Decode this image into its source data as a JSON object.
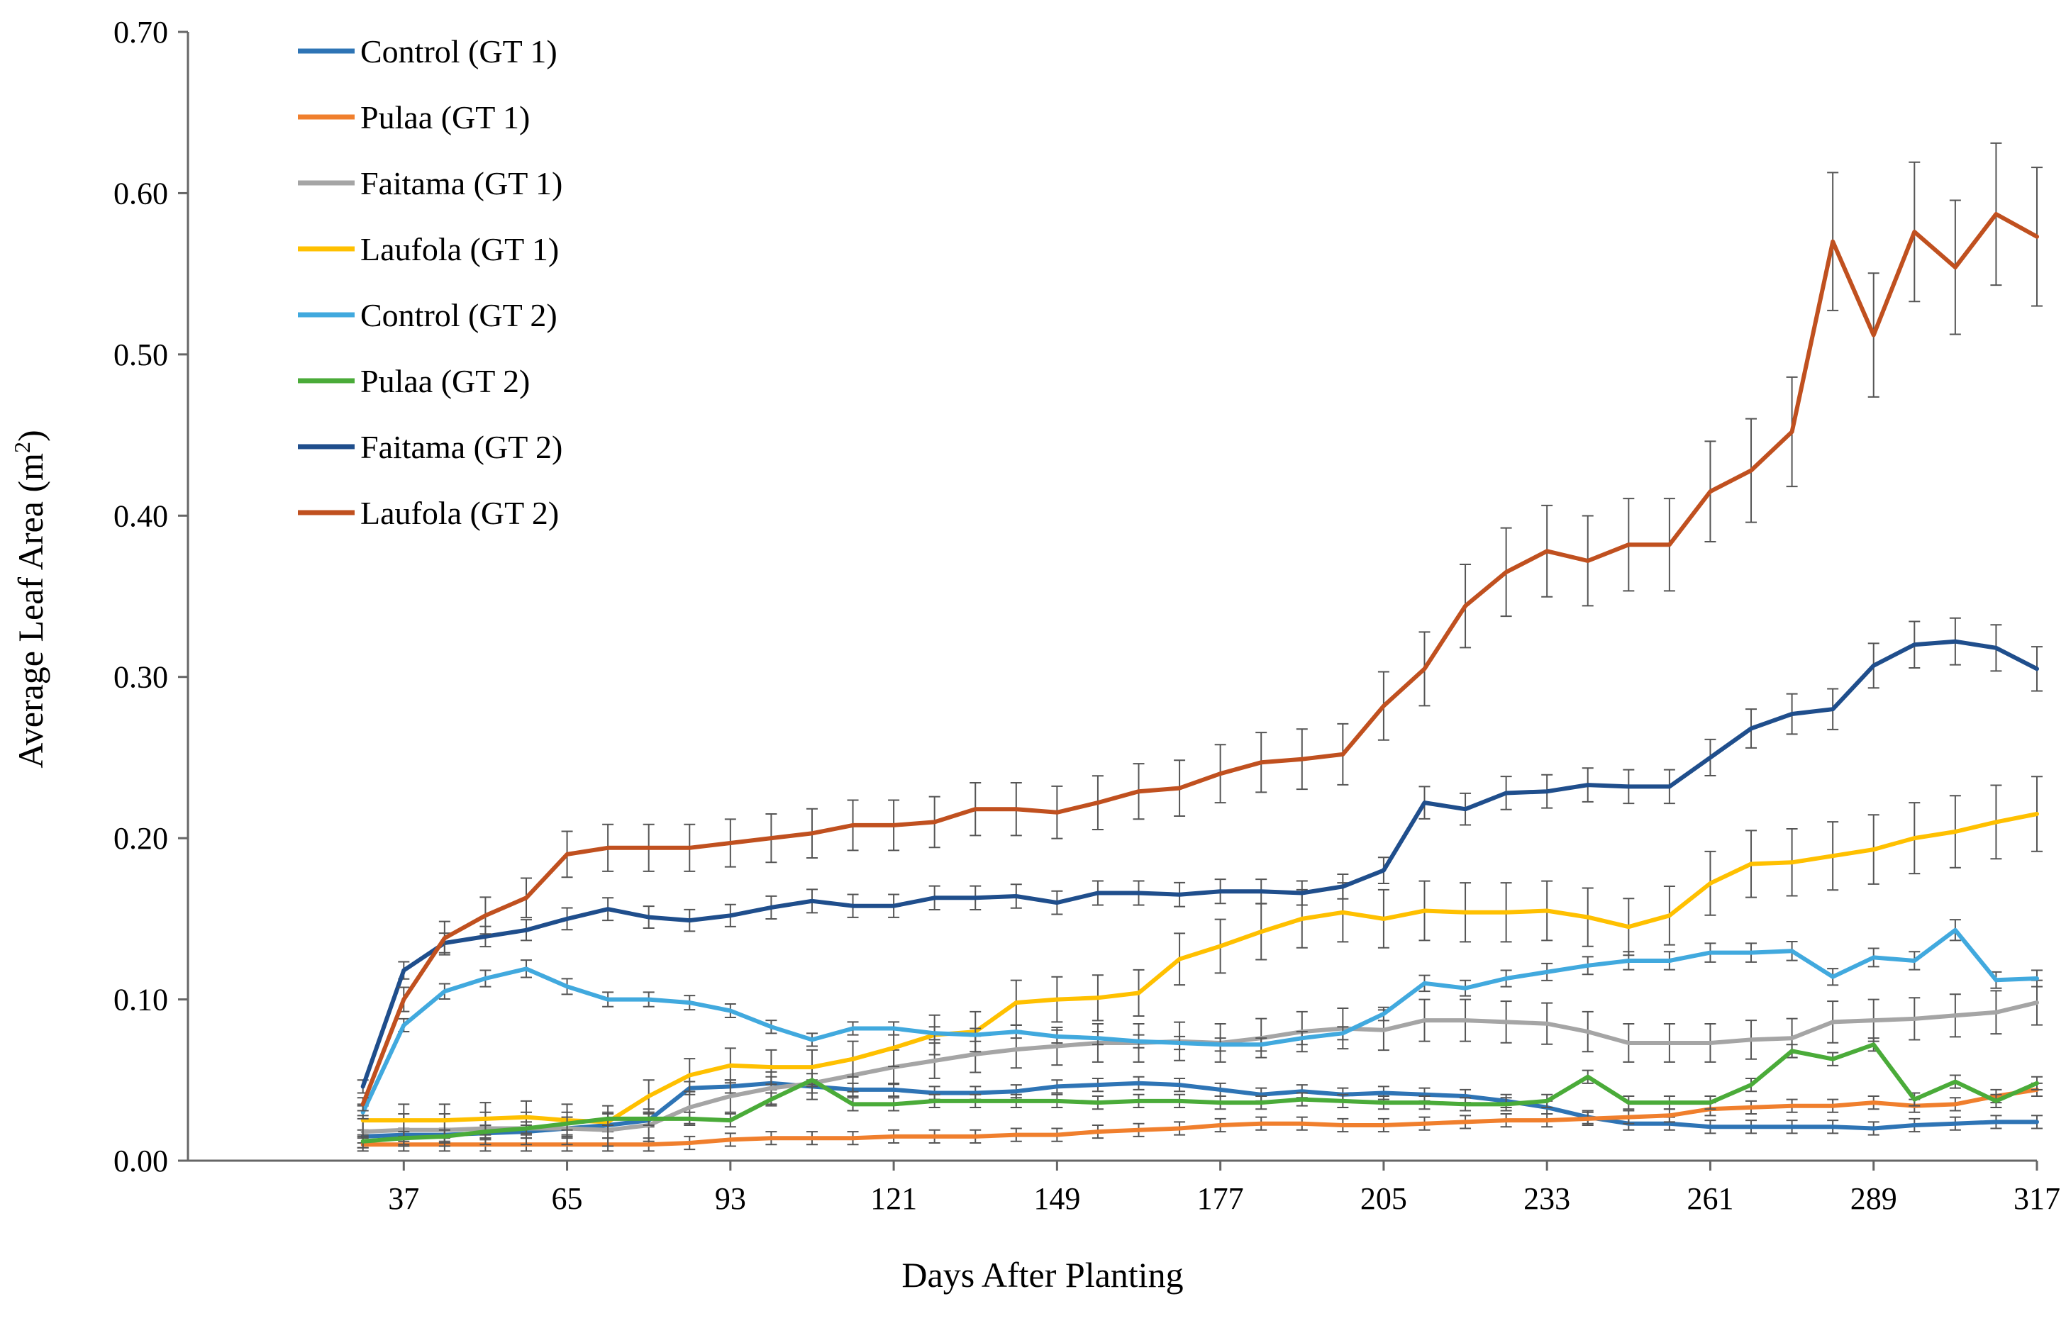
{
  "chart_data": {
    "type": "line",
    "title": "",
    "xlabel": "Days After Planting",
    "ylabel": "Average Leaf Area (m²)",
    "ylabel_main": "Average Leaf Area (m",
    "ylabel_sup": "2",
    "ylabel_close": ")",
    "ylim": [
      0,
      0.7
    ],
    "xlim": [
      0,
      317
    ],
    "y_ticks": [
      "0.00",
      "0.10",
      "0.20",
      "0.30",
      "0.40",
      "0.50",
      "0.60",
      "0.70"
    ],
    "x_ticks": [
      "37",
      "65",
      "93",
      "121",
      "149",
      "177",
      "205",
      "233",
      "261",
      "289",
      "317"
    ],
    "grid": false,
    "legend_position": "top-left",
    "x": [
      30,
      37,
      44,
      51,
      58,
      65,
      72,
      79,
      86,
      93,
      100,
      107,
      114,
      121,
      128,
      135,
      142,
      149,
      156,
      163,
      170,
      177,
      184,
      191,
      198,
      205,
      212,
      219,
      226,
      233,
      240,
      247,
      254,
      261,
      268,
      275,
      282,
      289,
      296,
      303,
      310,
      317
    ],
    "series": [
      {
        "name": "Control (GT 1)",
        "color": "#2e74b5",
        "values": [
          0.015,
          0.016,
          0.016,
          0.017,
          0.018,
          0.02,
          0.022,
          0.025,
          0.045,
          0.046,
          0.048,
          0.046,
          0.044,
          0.044,
          0.042,
          0.042,
          0.043,
          0.046,
          0.047,
          0.048,
          0.047,
          0.044,
          0.041,
          0.043,
          0.041,
          0.042,
          0.041,
          0.04,
          0.037,
          0.033,
          0.027,
          0.023,
          0.023,
          0.021,
          0.021,
          0.021,
          0.021,
          0.02,
          0.022,
          0.023,
          0.024,
          0.024
        ]
      },
      {
        "name": "Pulaa (GT 1)",
        "color": "#f07f2d",
        "values": [
          0.01,
          0.01,
          0.01,
          0.01,
          0.01,
          0.01,
          0.01,
          0.01,
          0.011,
          0.013,
          0.014,
          0.014,
          0.014,
          0.015,
          0.015,
          0.015,
          0.016,
          0.016,
          0.018,
          0.019,
          0.02,
          0.022,
          0.023,
          0.023,
          0.022,
          0.022,
          0.023,
          0.024,
          0.025,
          0.025,
          0.026,
          0.027,
          0.028,
          0.032,
          0.033,
          0.034,
          0.034,
          0.036,
          0.034,
          0.035,
          0.04,
          0.044
        ]
      },
      {
        "name": "Faitama (GT 1)",
        "color": "#a5a5a5",
        "values": [
          0.018,
          0.019,
          0.019,
          0.02,
          0.02,
          0.02,
          0.019,
          0.022,
          0.033,
          0.04,
          0.045,
          0.048,
          0.053,
          0.058,
          0.062,
          0.066,
          0.069,
          0.071,
          0.073,
          0.073,
          0.074,
          0.073,
          0.076,
          0.08,
          0.082,
          0.081,
          0.087,
          0.087,
          0.086,
          0.085,
          0.08,
          0.073,
          0.073,
          0.073,
          0.075,
          0.076,
          0.086,
          0.087,
          0.088,
          0.09,
          0.092,
          0.098
        ]
      },
      {
        "name": "Laufola (GT 1)",
        "color": "#ffc000",
        "values": [
          0.025,
          0.025,
          0.025,
          0.026,
          0.027,
          0.025,
          0.024,
          0.04,
          0.053,
          0.059,
          0.058,
          0.058,
          0.063,
          0.07,
          0.078,
          0.08,
          0.098,
          0.1,
          0.101,
          0.104,
          0.125,
          0.133,
          0.142,
          0.15,
          0.154,
          0.15,
          0.155,
          0.154,
          0.154,
          0.155,
          0.151,
          0.145,
          0.152,
          0.172,
          0.184,
          0.185,
          0.189,
          0.193,
          0.2,
          0.204,
          0.21,
          0.215
        ]
      },
      {
        "name": "Control (GT 2)",
        "color": "#41a9de",
        "values": [
          0.03,
          0.084,
          0.105,
          0.113,
          0.119,
          0.108,
          0.1,
          0.1,
          0.098,
          0.093,
          0.083,
          0.075,
          0.082,
          0.082,
          0.079,
          0.078,
          0.08,
          0.077,
          0.076,
          0.074,
          0.073,
          0.072,
          0.072,
          0.076,
          0.079,
          0.091,
          0.11,
          0.107,
          0.113,
          0.117,
          0.121,
          0.124,
          0.124,
          0.129,
          0.129,
          0.13,
          0.114,
          0.126,
          0.124,
          0.143,
          0.112,
          0.113
        ]
      },
      {
        "name": "Pulaa (GT 2)",
        "color": "#4aab39",
        "values": [
          0.012,
          0.014,
          0.015,
          0.018,
          0.02,
          0.023,
          0.026,
          0.026,
          0.026,
          0.025,
          0.038,
          0.05,
          0.035,
          0.035,
          0.037,
          0.037,
          0.037,
          0.037,
          0.036,
          0.037,
          0.037,
          0.036,
          0.036,
          0.038,
          0.037,
          0.036,
          0.036,
          0.035,
          0.035,
          0.037,
          0.052,
          0.036,
          0.036,
          0.036,
          0.047,
          0.068,
          0.063,
          0.072,
          0.038,
          0.049,
          0.037,
          0.048
        ]
      },
      {
        "name": "Faitama (GT 2)",
        "color": "#1f4e8c",
        "values": [
          0.046,
          0.118,
          0.135,
          0.139,
          0.143,
          0.15,
          0.156,
          0.151,
          0.149,
          0.152,
          0.157,
          0.161,
          0.158,
          0.158,
          0.163,
          0.163,
          0.164,
          0.16,
          0.166,
          0.166,
          0.165,
          0.167,
          0.167,
          0.166,
          0.17,
          0.18,
          0.222,
          0.218,
          0.228,
          0.229,
          0.233,
          0.232,
          0.232,
          0.25,
          0.268,
          0.277,
          0.28,
          0.307,
          0.32,
          0.322,
          0.318,
          0.305
        ]
      },
      {
        "name": "Laufola (GT 2)",
        "color": "#c0501f",
        "values": [
          0.035,
          0.1,
          0.138,
          0.152,
          0.163,
          0.19,
          0.194,
          0.194,
          0.194,
          0.197,
          0.2,
          0.203,
          0.208,
          0.208,
          0.21,
          0.218,
          0.218,
          0.216,
          0.222,
          0.229,
          0.231,
          0.24,
          0.247,
          0.249,
          0.252,
          0.282,
          0.305,
          0.344,
          0.365,
          0.378,
          0.372,
          0.382,
          0.382,
          0.415,
          0.428,
          0.452,
          0.57,
          0.512,
          0.576,
          0.554,
          0.587,
          0.573
        ]
      }
    ]
  }
}
